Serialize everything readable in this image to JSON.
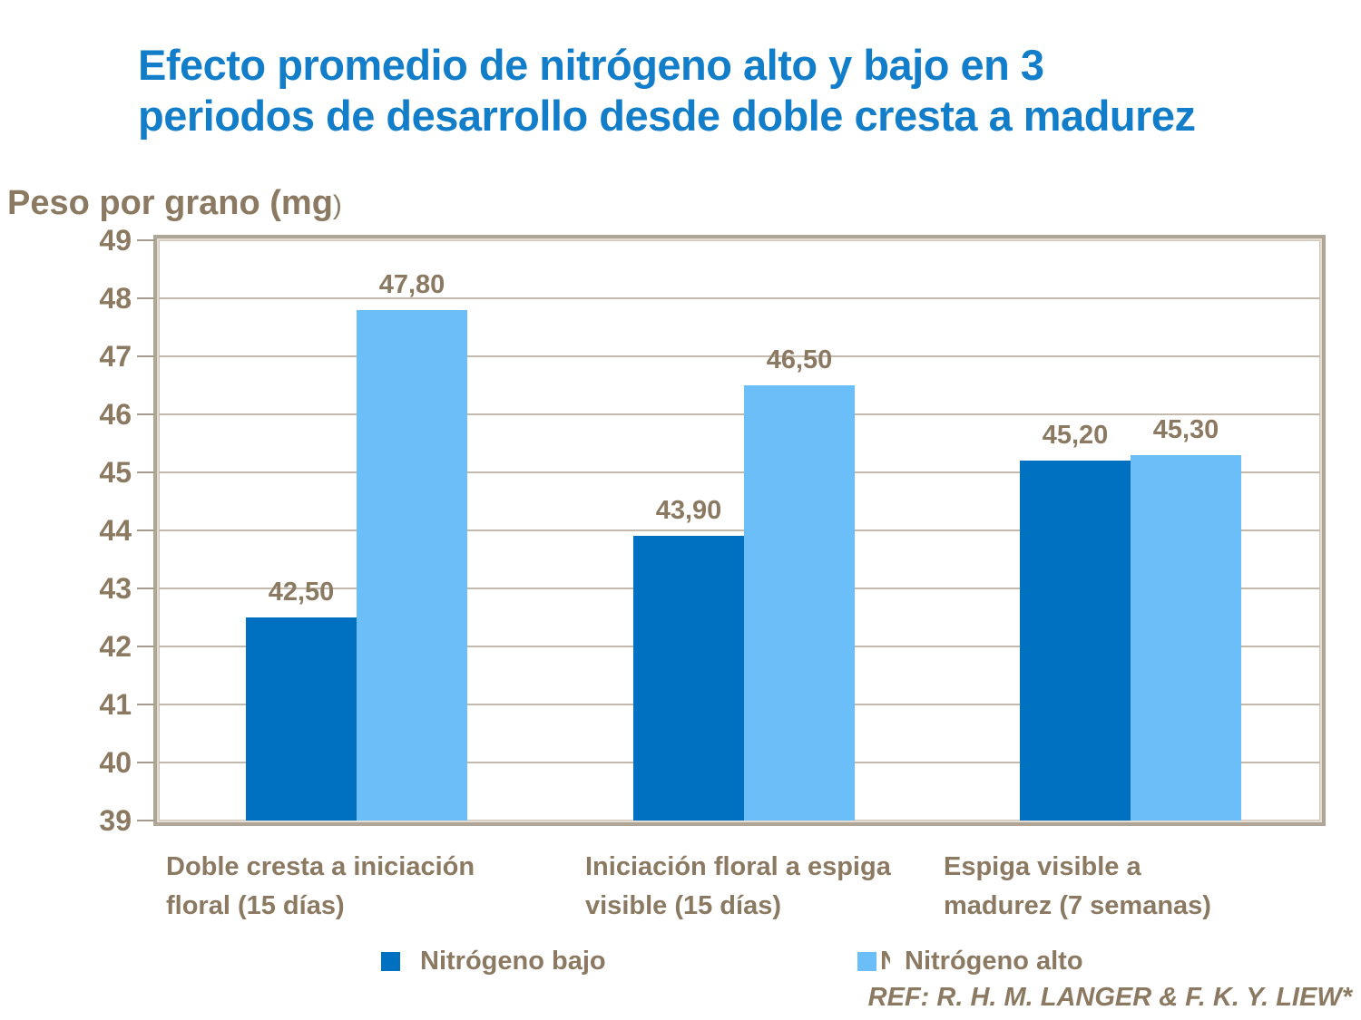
{
  "chart_data": {
    "type": "bar",
    "title_lines": [
      "Efecto promedio de nitrógeno alto y bajo en 3",
      "periodos de desarrollo desde doble cresta a madurez"
    ],
    "ylabel": "Peso por grano (mg",
    "ylabel_close_paren": ")",
    "categories": [
      "Doble cresta a iniciación\nfloral (15 días)",
      "Iniciación floral a espiga\nvisible (15 días)",
      "Espiga visible a\nmadurez  (7 semanas)"
    ],
    "series": [
      {
        "name": "Nitrógeno bajo",
        "values": [
          42.5,
          43.9,
          45.2
        ],
        "labels": [
          "42,50",
          "43,90",
          "45,20"
        ],
        "color": "#0070c0"
      },
      {
        "name": "Nitrógeno alto",
        "values": [
          47.8,
          46.5,
          45.3
        ],
        "labels": [
          "47,80",
          "46,50",
          "45,30"
        ],
        "color": "#6cbef8"
      }
    ],
    "ylim": [
      39,
      49
    ],
    "ytick_step": 1,
    "grid": true,
    "legend_position": "bottom",
    "legend_artifact_text": "N",
    "reference": "REF: R. H. M. LANGER & F. K. Y. LIEW*"
  },
  "colors": {
    "title_blue": "#127dc9",
    "text_brown": "#8b7962",
    "gridline": "#c3b9ad",
    "plot_border": "#b0a698",
    "nitrogeno_bajo": "#0070c0",
    "nitrogeno_alto": "#6cbef8"
  }
}
